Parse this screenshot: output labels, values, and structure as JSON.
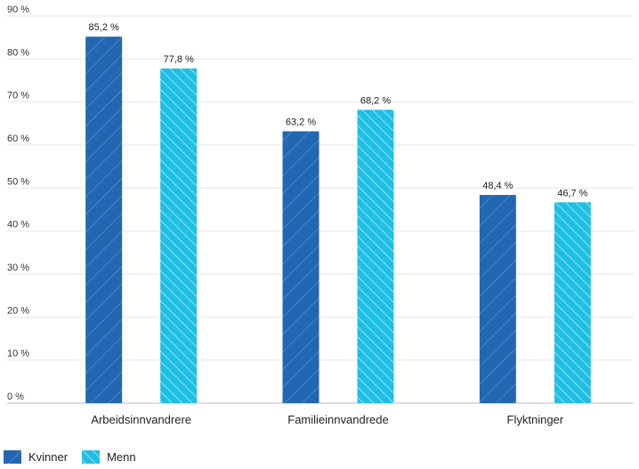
{
  "colors": {
    "kvinner": "#2167b1",
    "menn": "#1fbfe3",
    "grid": "#e6e6e6"
  },
  "chart_data": {
    "type": "bar",
    "categories": [
      "Arbeidsinnvandrere",
      "Familieinnvandrede",
      "Flyktninger"
    ],
    "series": [
      {
        "name": "Kvinner",
        "values": [
          85.2,
          63.2,
          48.4
        ],
        "labels": [
          "85,2 %",
          "63,2 %",
          "48,4 %"
        ],
        "color": "#2167b1"
      },
      {
        "name": "Menn",
        "values": [
          77.8,
          68.2,
          46.7
        ],
        "labels": [
          "77,8 %",
          "68,2 %",
          "46,7 %"
        ],
        "color": "#1fbfe3"
      }
    ],
    "ylim": [
      0,
      90
    ],
    "yticks": [
      0,
      10,
      20,
      30,
      40,
      50,
      60,
      70,
      80,
      90
    ],
    "ytick_labels": [
      "0 %",
      "10 %",
      "20 %",
      "30 %",
      "40 %",
      "50 %",
      "60 %",
      "70 %",
      "80 %",
      "90 %"
    ],
    "grid": true,
    "legend_position": "bottom-left"
  }
}
